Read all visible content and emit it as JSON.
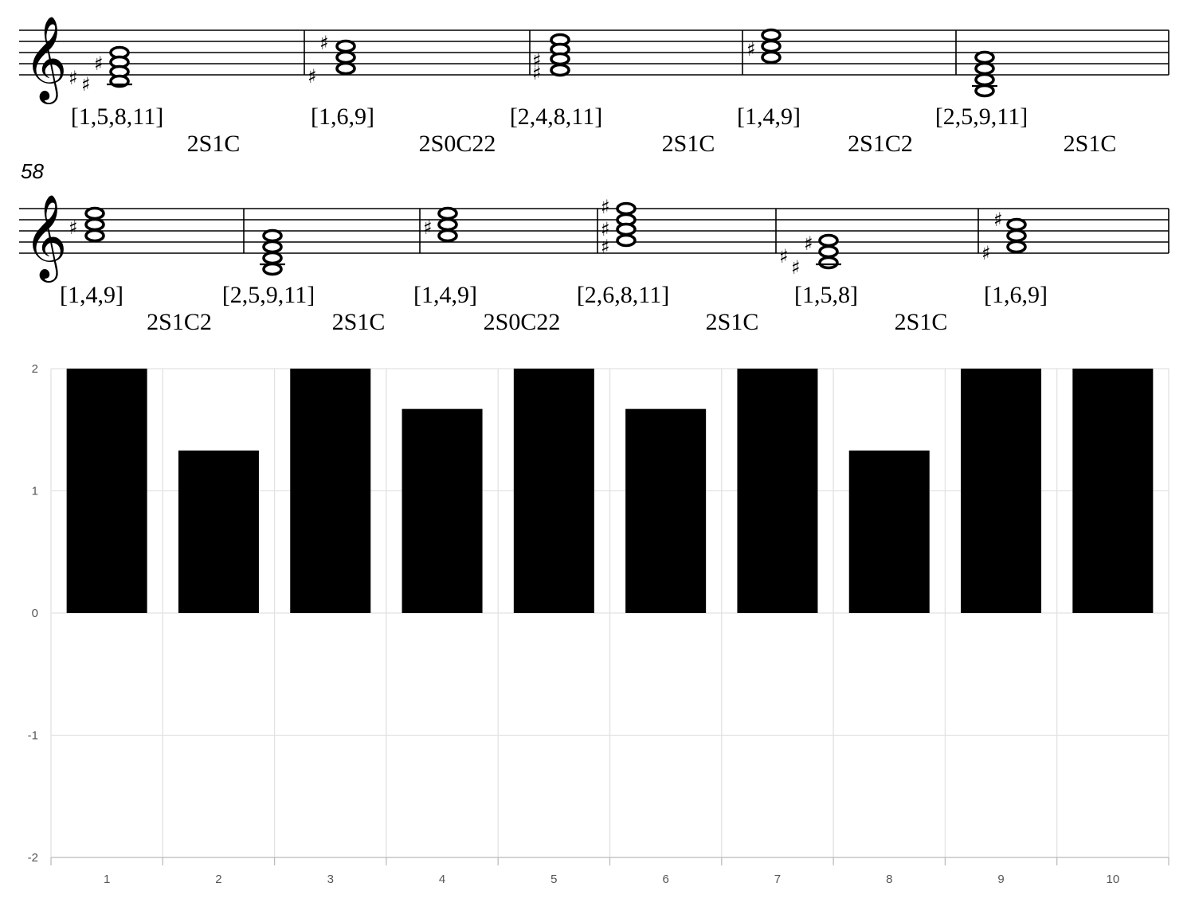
{
  "score": {
    "system_2_measure_number": "58",
    "system_1": {
      "chords": [
        {
          "set": "[1,5,8,11]",
          "sharps": 3
        },
        {
          "set": "[1,6,9]",
          "sharps": 2
        },
        {
          "set": "[2,4,8,11]",
          "sharps": 2
        },
        {
          "set": "[1,4,9]",
          "sharps": 1
        },
        {
          "set": "[2,5,9,11]",
          "sharps": 0
        }
      ],
      "relations": [
        "2S1C",
        "2S0C22",
        "2S1C",
        "2S1C2",
        "2S1C"
      ]
    },
    "system_2": {
      "chords": [
        {
          "set": "[1,4,9]",
          "sharps": 1
        },
        {
          "set": "[2,5,9,11]",
          "sharps": 0
        },
        {
          "set": "[1,4,9]",
          "sharps": 1
        },
        {
          "set": "[2,6,8,11]",
          "sharps": 3
        },
        {
          "set": "[1,5,8]",
          "sharps": 3
        },
        {
          "set": "[1,6,9]",
          "sharps": 2
        }
      ],
      "relations": [
        "2S1C2",
        "2S1C",
        "2S0C22",
        "2S1C",
        "2S1C"
      ]
    }
  },
  "chart_data": {
    "type": "bar",
    "categories": [
      "1",
      "2",
      "3",
      "4",
      "5",
      "6",
      "7",
      "8",
      "9",
      "10"
    ],
    "values": [
      2,
      1.33,
      2,
      1.67,
      2,
      1.67,
      2,
      1.33,
      2,
      2
    ],
    "ylim": [
      -2,
      2
    ],
    "y_ticks": [
      "2",
      "1",
      "0",
      "-1",
      "-2"
    ],
    "bar_color": "#000000",
    "grid": true,
    "title": "",
    "xlabel": "",
    "ylabel": ""
  }
}
